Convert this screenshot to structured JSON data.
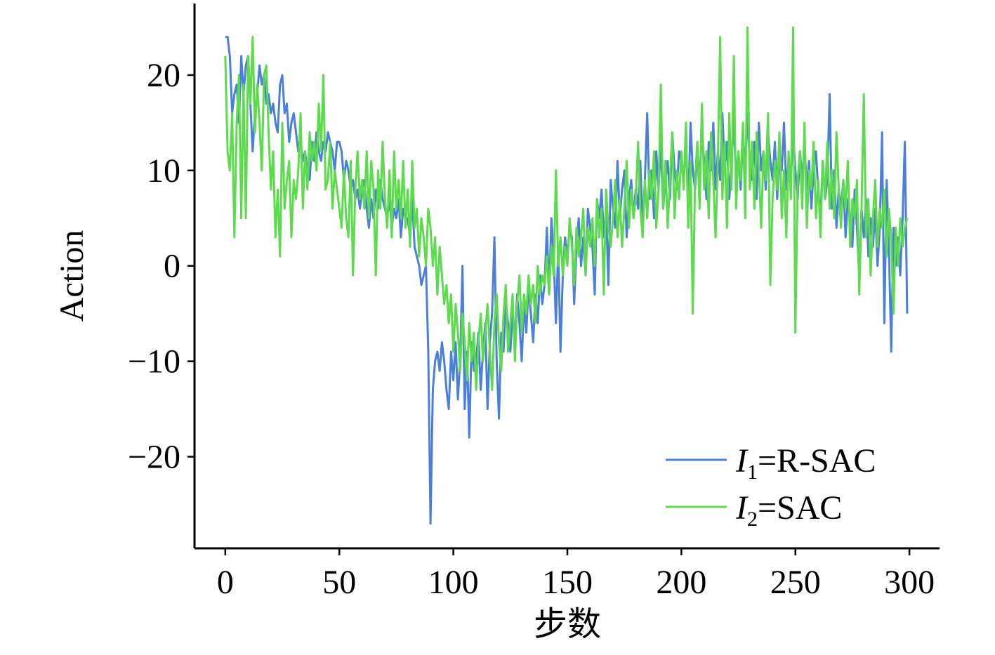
{
  "chart_data": {
    "type": "line",
    "x_label": "步数",
    "y_label": "Action",
    "x": [
      0,
      1,
      2,
      3,
      4,
      5,
      6,
      7,
      8,
      9,
      10,
      11,
      12,
      13,
      14,
      15,
      16,
      17,
      18,
      19,
      20,
      21,
      22,
      23,
      24,
      25,
      26,
      27,
      28,
      29,
      30,
      31,
      32,
      33,
      34,
      35,
      36,
      37,
      38,
      39,
      40,
      41,
      42,
      43,
      44,
      45,
      46,
      47,
      48,
      49,
      50,
      51,
      52,
      53,
      54,
      55,
      56,
      57,
      58,
      59,
      60,
      61,
      62,
      63,
      64,
      65,
      66,
      67,
      68,
      69,
      70,
      71,
      72,
      73,
      74,
      75,
      76,
      77,
      78,
      79,
      80,
      81,
      82,
      83,
      84,
      85,
      86,
      87,
      88,
      89,
      90,
      91,
      92,
      93,
      94,
      95,
      96,
      97,
      98,
      99,
      100,
      101,
      102,
      103,
      104,
      105,
      106,
      107,
      108,
      109,
      110,
      111,
      112,
      113,
      114,
      115,
      116,
      117,
      118,
      119,
      120,
      121,
      122,
      123,
      124,
      125,
      126,
      127,
      128,
      129,
      130,
      131,
      132,
      133,
      134,
      135,
      136,
      137,
      138,
      139,
      140,
      141,
      142,
      143,
      144,
      145,
      146,
      147,
      148,
      149,
      150,
      151,
      152,
      153,
      154,
      155,
      156,
      157,
      158,
      159,
      160,
      161,
      162,
      163,
      164,
      165,
      166,
      167,
      168,
      169,
      170,
      171,
      172,
      173,
      174,
      175,
      176,
      177,
      178,
      179,
      180,
      181,
      182,
      183,
      184,
      185,
      186,
      187,
      188,
      189,
      190,
      191,
      192,
      193,
      194,
      195,
      196,
      197,
      198,
      199,
      200,
      201,
      202,
      203,
      204,
      205,
      206,
      207,
      208,
      209,
      210,
      211,
      212,
      213,
      214,
      215,
      216,
      217,
      218,
      219,
      220,
      221,
      222,
      223,
      224,
      225,
      226,
      227,
      228,
      229,
      230,
      231,
      232,
      233,
      234,
      235,
      236,
      237,
      238,
      239,
      240,
      241,
      242,
      243,
      244,
      245,
      246,
      247,
      248,
      249,
      250,
      251,
      252,
      253,
      254,
      255,
      256,
      257,
      258,
      259,
      260,
      261,
      262,
      263,
      264,
      265,
      266,
      267,
      268,
      269,
      270,
      271,
      272,
      273,
      274,
      275,
      276,
      277,
      278,
      279,
      280,
      281,
      282,
      283,
      284,
      285,
      286,
      287,
      288,
      289,
      290,
      291,
      292,
      293,
      294,
      295,
      296,
      297,
      298,
      299
    ],
    "series": [
      {
        "name": "I1=R-SAC",
        "color": "#4a7fdc",
        "values": [
          24,
          24,
          22,
          16,
          18,
          19,
          15,
          22,
          18,
          21,
          22,
          17,
          12,
          16,
          18,
          21,
          19,
          20,
          17,
          18,
          16,
          17,
          15,
          14,
          19,
          20,
          16,
          17,
          13,
          15,
          16,
          14,
          12,
          13,
          11,
          12,
          10,
          9,
          13,
          11,
          14,
          12,
          11,
          13,
          12,
          14,
          13,
          12,
          10,
          13,
          13,
          12,
          9,
          11,
          10,
          8,
          9,
          7,
          8,
          6,
          8,
          9,
          6,
          4,
          7,
          5,
          8,
          6,
          9,
          7,
          6,
          5,
          7,
          4,
          6,
          5,
          7,
          3,
          6,
          5,
          5,
          3,
          7,
          2,
          1,
          0,
          -2,
          -1,
          0,
          -9,
          -27,
          -13,
          -10,
          -9,
          -11,
          -8,
          -10,
          -13,
          -15,
          -9,
          -12,
          -8,
          -14,
          -10,
          0,
          -15,
          -9,
          -18,
          -8,
          -11,
          -10,
          -7,
          -13,
          -9,
          -6,
          -15,
          -8,
          -5,
          3,
          -10,
          -16,
          -7,
          -9,
          -4,
          -6,
          -9,
          -5,
          -8,
          -3,
          -6,
          -10,
          -4,
          -7,
          -2,
          -5,
          -8,
          -3,
          -6,
          -1,
          -4,
          -2,
          4,
          -3,
          5,
          1,
          -6,
          2,
          -9,
          -1,
          3,
          1,
          4,
          3,
          -4,
          2,
          5,
          0,
          3,
          -1,
          6,
          4,
          2,
          -3,
          7,
          5,
          8,
          3,
          6,
          -2,
          9,
          6,
          4,
          11,
          5,
          8,
          10,
          3,
          7,
          9,
          5,
          8,
          6,
          11,
          4,
          9,
          16,
          7,
          10,
          5,
          12,
          8,
          13,
          6,
          9,
          11,
          7,
          14,
          10,
          8,
          12,
          11,
          9,
          13,
          6,
          15,
          10,
          8,
          12,
          9,
          14,
          11,
          7,
          13,
          10,
          15,
          8,
          12,
          9,
          16,
          10,
          13,
          7,
          11,
          15,
          9,
          12,
          8,
          14,
          10,
          16,
          11,
          9,
          13,
          7,
          15,
          10,
          12,
          8,
          14,
          11,
          9,
          13,
          7,
          12,
          10,
          15,
          8,
          11,
          9,
          14,
          10,
          7,
          12,
          9,
          13,
          8,
          11,
          6,
          10,
          12,
          8,
          5,
          11,
          7,
          9,
          18,
          6,
          10,
          4,
          8,
          6,
          9,
          3,
          7,
          5,
          2,
          8,
          4,
          -1,
          6,
          3,
          7,
          1,
          5,
          2,
          6,
          0,
          4,
          14,
          -6,
          9,
          2,
          -9,
          4,
          0,
          3,
          -1,
          5,
          13,
          -5
        ]
      },
      {
        "name": "I2=SAC",
        "color": "#5cdc4c",
        "values": [
          22,
          12,
          10,
          16,
          3,
          15,
          20,
          5,
          19,
          5,
          22,
          17,
          24,
          14,
          19,
          15,
          10,
          20,
          21,
          14,
          8,
          12,
          3,
          8,
          1,
          15,
          6,
          9,
          11,
          3,
          9,
          7,
          10,
          16,
          6,
          12,
          8,
          14,
          11,
          13,
          10,
          17,
          12,
          20,
          8,
          9,
          13,
          6,
          10,
          8,
          6,
          4,
          10,
          5,
          3,
          11,
          -1,
          8,
          12,
          7,
          9,
          6,
          12,
          5,
          11,
          8,
          -1,
          10,
          6,
          13,
          7,
          4,
          10,
          3,
          12,
          6,
          9,
          5,
          11,
          4,
          8,
          2,
          11,
          4,
          6,
          1,
          5,
          3,
          0,
          6,
          4,
          0,
          3,
          -3,
          2,
          -1,
          -4,
          -2,
          -6,
          -3,
          -9,
          -4,
          -7,
          -11,
          -5,
          -8,
          -12,
          -6,
          -10,
          -7,
          -13,
          -8,
          -5,
          -10,
          -7,
          -4,
          -9,
          -13,
          -6,
          -3,
          -8,
          -11,
          -5,
          -2,
          -9,
          -6,
          -3,
          -10,
          -4,
          -1,
          -7,
          -3,
          -5,
          -1,
          -4,
          -2,
          -6,
          0,
          -3,
          -1,
          -2,
          1,
          -3,
          2,
          -1,
          10,
          0,
          3,
          -1,
          2,
          0,
          5,
          2,
          -2,
          4,
          1,
          3,
          6,
          -1,
          4,
          2,
          5,
          0,
          7,
          3,
          6,
          -3,
          8,
          4,
          2,
          5,
          9,
          3,
          7,
          2,
          6,
          11,
          4,
          8,
          5,
          7,
          13,
          6,
          3,
          9,
          5,
          10,
          7,
          12,
          4,
          8,
          19,
          6,
          11,
          4,
          9,
          14,
          5,
          10,
          7,
          12,
          8,
          15,
          4,
          11,
          -5,
          9,
          13,
          6,
          17,
          8,
          12,
          5,
          14,
          9,
          3,
          11,
          24,
          7,
          13,
          4,
          16,
          8,
          22,
          6,
          12,
          9,
          15,
          5,
          25,
          8,
          13,
          6,
          14,
          10,
          4,
          12,
          9,
          16,
          -2,
          7,
          11,
          8,
          14,
          5,
          10,
          3,
          12,
          7,
          25,
          -7,
          9,
          12,
          6,
          15,
          4,
          10,
          8,
          13,
          5,
          9,
          3,
          11,
          7,
          13,
          6,
          10,
          5,
          14,
          8,
          4,
          9,
          6,
          11,
          2,
          7,
          5,
          9,
          -3,
          6,
          18,
          3,
          7,
          -1,
          5,
          9,
          2,
          6,
          4,
          8,
          1,
          6,
          3,
          -5,
          4,
          0,
          5,
          2,
          4,
          5
        ]
      }
    ],
    "xlim": [
      -13.5,
      313.2
    ],
    "ylim": [
      -29.6,
      27.5
    ],
    "xticks": [
      0,
      50,
      100,
      150,
      200,
      250,
      300
    ],
    "yticks": [
      {
        "value": -20,
        "label": "−20"
      },
      {
        "value": -10,
        "label": "−10"
      },
      0,
      10,
      20
    ],
    "legend": "lower right"
  }
}
